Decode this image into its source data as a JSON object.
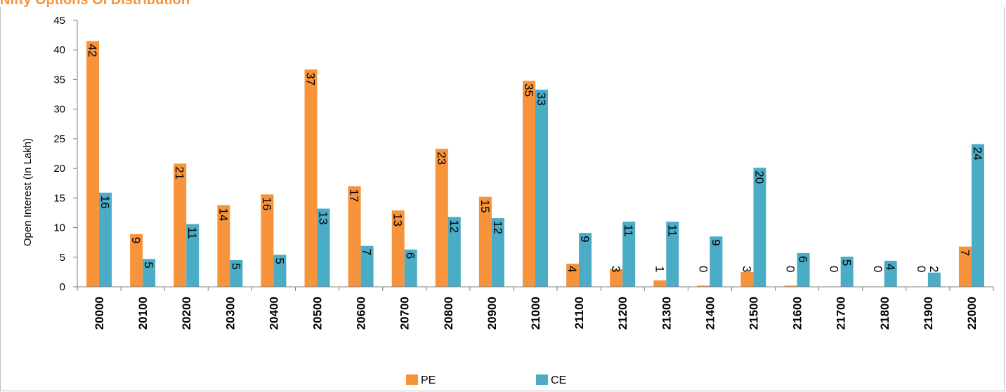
{
  "header": {
    "title": "Nifty Options OI Distribution"
  },
  "chart_data": {
    "type": "bar",
    "categories": [
      "20000",
      "20100",
      "20200",
      "20300",
      "20400",
      "20500",
      "20600",
      "20700",
      "20800",
      "20900",
      "21000",
      "21100",
      "21200",
      "21300",
      "21400",
      "21500",
      "21600",
      "21700",
      "21800",
      "21900",
      "22000"
    ],
    "series": [
      {
        "name": "PE",
        "color": "#f7943b",
        "values": [
          41.5,
          8.9,
          20.8,
          13.8,
          15.6,
          36.7,
          17.0,
          12.9,
          23.3,
          15.2,
          34.8,
          3.9,
          3.0,
          1.1,
          0.2,
          2.5,
          0.2,
          0.0,
          0.0,
          0.0,
          6.8
        ],
        "labels": [
          "42",
          "9",
          "21",
          "14",
          "16",
          "37",
          "17",
          "13",
          "23",
          "15",
          "35",
          "4",
          "3",
          "1",
          "0",
          "3",
          "0",
          "0",
          "0",
          "0",
          "7"
        ]
      },
      {
        "name": "CE",
        "color": "#4bacc6",
        "values": [
          15.9,
          4.7,
          10.6,
          4.5,
          5.4,
          13.2,
          6.9,
          6.3,
          11.8,
          11.6,
          33.3,
          9.1,
          11.0,
          11.0,
          8.5,
          20.1,
          5.7,
          5.1,
          4.4,
          2.4,
          24.1
        ],
        "labels": [
          "16",
          "5",
          "11",
          "5",
          "5",
          "13",
          "7",
          "6",
          "12",
          "12",
          "33",
          "9",
          "11",
          "11",
          "9",
          "20",
          "6",
          "5",
          "4",
          "2",
          "24"
        ]
      }
    ],
    "ylabel": "Open Interest  (In Lakh)",
    "ylim": [
      0,
      45
    ],
    "yticks": [
      "0",
      "5",
      "10",
      "15",
      "20",
      "25",
      "30",
      "35",
      "40",
      "45"
    ],
    "grid": false,
    "legend": "bottom-center"
  }
}
